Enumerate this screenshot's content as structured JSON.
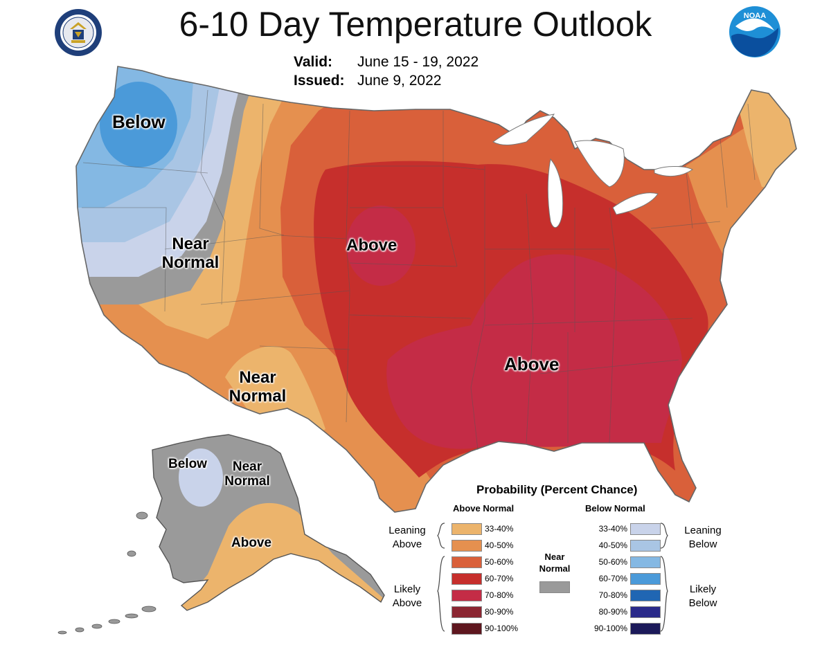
{
  "title": "6-10 Day Temperature Outlook",
  "valid": {
    "label": "Valid:",
    "value": "June 15 - 19, 2022"
  },
  "issued": {
    "label": "Issued:",
    "value": "June 9, 2022"
  },
  "logos": {
    "left": "department-of-commerce-seal",
    "right": "NOAA"
  },
  "region_labels": {
    "nw_below": "Below",
    "west_near_1": "Near",
    "west_near_2": "Normal",
    "central_above": "Above",
    "sw_near_1": "Near",
    "sw_near_2": "Normal",
    "south_above": "Above",
    "ak_below": "Below",
    "ak_near_1": "Near",
    "ak_near_2": "Normal",
    "ak_above": "Above"
  },
  "legend": {
    "title": "Probability (Percent Chance)",
    "above_header": "Above Normal",
    "below_header": "Below Normal",
    "near_normal_1": "Near",
    "near_normal_2": "Normal",
    "near_normal_color": "#9a9a9a",
    "leaning_above_1": "Leaning",
    "leaning_above_2": "Above",
    "likely_above_1": "Likely",
    "likely_above_2": "Above",
    "leaning_below_1": "Leaning",
    "leaning_below_2": "Below",
    "likely_below_1": "Likely",
    "likely_below_2": "Below",
    "above_bins": [
      {
        "range": "33-40%",
        "color": "#ecb46c"
      },
      {
        "range": "40-50%",
        "color": "#e5904f"
      },
      {
        "range": "50-60%",
        "color": "#d9603a"
      },
      {
        "range": "60-70%",
        "color": "#c62f2c"
      },
      {
        "range": "70-80%",
        "color": "#c42c46"
      },
      {
        "range": "80-90%",
        "color": "#8b2632"
      },
      {
        "range": "90-100%",
        "color": "#5e161e"
      }
    ],
    "below_bins": [
      {
        "range": "33-40%",
        "color": "#c9d3ea"
      },
      {
        "range": "40-50%",
        "color": "#a9c5e4"
      },
      {
        "range": "50-60%",
        "color": "#84b8e3"
      },
      {
        "range": "60-70%",
        "color": "#4b9ad9"
      },
      {
        "range": "70-80%",
        "color": "#2066b3"
      },
      {
        "range": "80-90%",
        "color": "#2a2a8a"
      },
      {
        "range": "90-100%",
        "color": "#1c1a5a"
      }
    ]
  }
}
